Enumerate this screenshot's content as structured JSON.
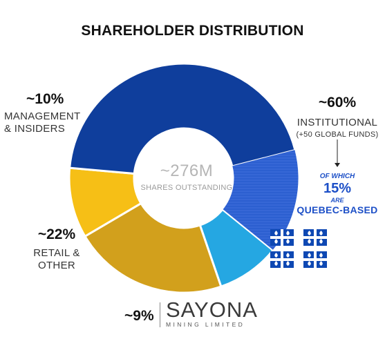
{
  "title": "SHAREHOLDER DISTRIBUTION",
  "chart_data": {
    "type": "pie",
    "title": "SHAREHOLDER DISTRIBUTION",
    "center_value": "~276M",
    "center_label": "SHARES OUTSTANDING",
    "slices": [
      {
        "label": "INSTITUTIONAL",
        "value": 60,
        "display": "~60%",
        "color": "#0f3e9c",
        "sub": "(+50 GLOBAL FUNDS)"
      },
      {
        "label": "",
        "value": 9,
        "display": "~9%",
        "color": "#25a7e2"
      },
      {
        "label": "RETAIL & OTHER",
        "value": 22,
        "display": "~22%",
        "color": "#d2a01c"
      },
      {
        "label": "MANAGEMENT & INSIDERS",
        "value": 10,
        "display": "~10%",
        "color": "#f6bf16"
      }
    ],
    "note": {
      "of_which": "OF WHICH",
      "value": "15%",
      "are": "ARE",
      "label": "QUEBEC-BASED",
      "value_num": 15,
      "color": "#1c4fc7"
    }
  },
  "labels": {
    "institutional_pct": "~60%",
    "institutional_l1": "INSTITUTIONAL",
    "institutional_l2": "(+50 GLOBAL FUNDS)",
    "mgmt_pct": "~10%",
    "mgmt_l1": "MANAGEMENT",
    "mgmt_l2": "& INSIDERS",
    "retail_pct": "~22%",
    "retail_l1": "RETAIL &",
    "retail_l2": "OTHER",
    "other_pct": "~9%"
  },
  "brand": {
    "name": "SAYONA",
    "sub": "MINING LIMITED"
  },
  "colors": {
    "flag_blue": "#0e48b3",
    "arrow": "#222222"
  }
}
